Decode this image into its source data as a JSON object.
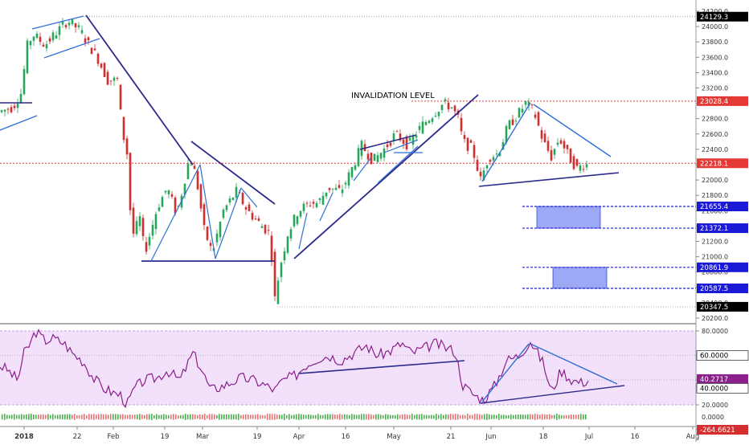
{
  "chart_data": [
    {
      "type": "candlestick",
      "annotation": "INVALIDATION LEVEL",
      "y_axis": {
        "ticks": [
          "24200.0",
          "24000.0",
          "23800.0",
          "23600.0",
          "23400.0",
          "23200.0",
          "23000.0",
          "22800.0",
          "22600.0",
          "22400.0",
          "22200.0",
          "22000.0",
          "21800.0",
          "21600.0",
          "21400.0",
          "21200.0",
          "21000.0",
          "20800.0",
          "20600.0",
          "20400.0",
          "20200.0"
        ],
        "ylim": [
          20150,
          24260
        ]
      },
      "x_axis": {
        "labels": [
          "2018",
          "22",
          "Feb",
          "19",
          "Mar",
          "19",
          "Apr",
          "16",
          "May",
          "21",
          "Jun",
          "18",
          "Jul",
          "16",
          "Aug"
        ]
      },
      "price_labels": [
        {
          "value": 24129.3,
          "label": "24129.3",
          "color": "#000000"
        },
        {
          "value": 23028.4,
          "label": "23028.4",
          "color": "#e53935"
        },
        {
          "value": 22218.1,
          "label": "22218.1",
          "color": "#e53935"
        },
        {
          "value": 21655.4,
          "label": "21655.4",
          "color": "#1a1ad6"
        },
        {
          "value": 21372.1,
          "label": "21372.1",
          "color": "#1a1ad6"
        },
        {
          "value": 20861.9,
          "label": "20861.9",
          "color": "#1a1ad6"
        },
        {
          "value": 20587.5,
          "label": "20587.5",
          "color": "#1a1ad6"
        },
        {
          "value": 20347.5,
          "label": "20347.5",
          "color": "#000000"
        }
      ],
      "zones": [
        {
          "top": 21655.4,
          "bottom": 21372.1
        },
        {
          "top": 20861.9,
          "bottom": 20587.5
        }
      ],
      "colors": {
        "up": "#26a65b",
        "down": "#d32f2f",
        "trend": "#2b2b8c",
        "channel": "#2f6fd6",
        "zone": "#7b8cf0"
      }
    },
    {
      "type": "line",
      "series": [
        {
          "name": "",
          "color": "#8b1f8b"
        }
      ],
      "y_axis": {
        "ticks": [
          "80.0000",
          "60.0000",
          "40.0000",
          "20.0000",
          "0.0000"
        ],
        "ylim": [
          0,
          85
        ]
      },
      "value_labels": [
        {
          "value": 60.0,
          "label": "60.0000",
          "color": "#000000"
        },
        {
          "value": 40.2717,
          "label": "40.2717",
          "color": "#8b1f8b"
        },
        {
          "value": 40.0,
          "label": "40.0000",
          "color": "#000000"
        }
      ],
      "band": [
        20,
        80
      ],
      "band_color": "#f3e0fa"
    },
    {
      "type": "bar",
      "value_labels": [
        {
          "value": -264.6621,
          "label": "-264.6621",
          "color": "#d32f2f"
        }
      ]
    }
  ]
}
